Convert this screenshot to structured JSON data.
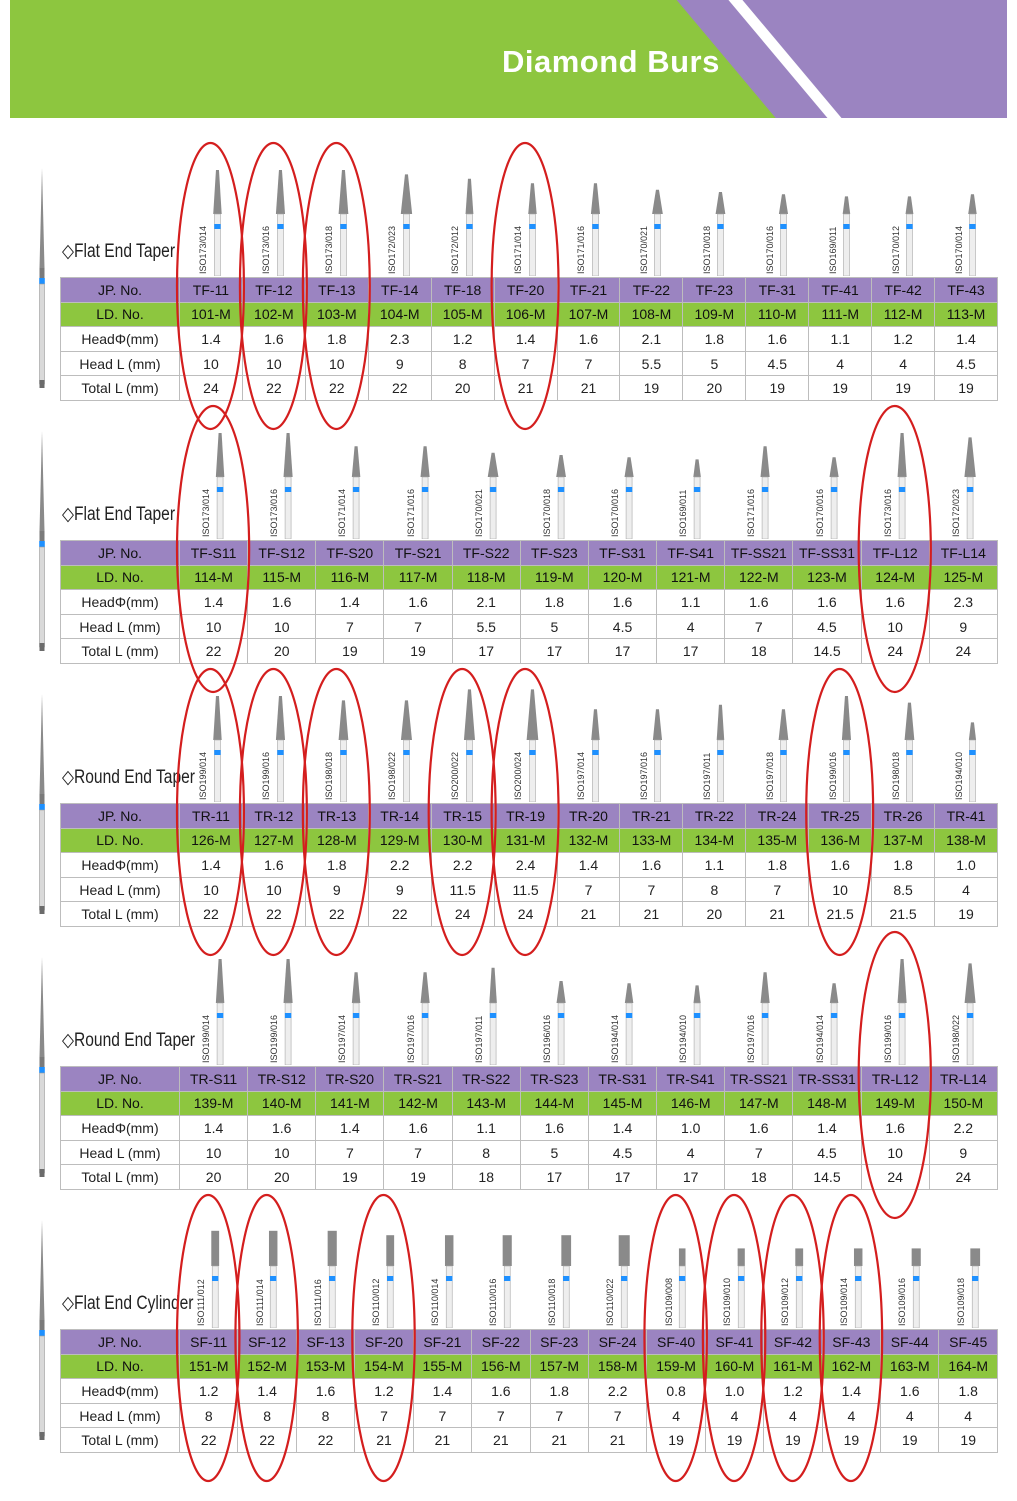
{
  "header": {
    "title": "Diamond Burs",
    "colors": {
      "green": "#8dc63f",
      "purple": "#9b84c1",
      "highlight": "#d41e1e"
    }
  },
  "row_labels": {
    "jp": "JP. No.",
    "ld": "LD. No.",
    "head_dia": "HeadΦ(mm)",
    "head_l": "Head L (mm)",
    "total_l": "Total L (mm)"
  },
  "sections": [
    {
      "title": "◇Flat End Taper",
      "iso": [
        "ISO173/014",
        "ISO173/016",
        "ISO173/018",
        "ISO172/023",
        "ISO172/012",
        "ISO171/014",
        "ISO171/016",
        "ISO170/021",
        "ISO170/018",
        "ISO170/016",
        "ISO169/011",
        "ISO170/012",
        "ISO170/014"
      ],
      "jp": [
        "TF-11",
        "TF-12",
        "TF-13",
        "TF-14",
        "TF-18",
        "TF-20",
        "TF-21",
        "TF-22",
        "TF-23",
        "TF-31",
        "TF-41",
        "TF-42",
        "TF-43"
      ],
      "ld": [
        "101-M",
        "102-M",
        "103-M",
        "104-M",
        "105-M",
        "106-M",
        "107-M",
        "108-M",
        "109-M",
        "110-M",
        "111-M",
        "112-M",
        "113-M"
      ],
      "head_dia": [
        "1.4",
        "1.6",
        "1.8",
        "2.3",
        "1.2",
        "1.4",
        "1.6",
        "2.1",
        "1.8",
        "1.6",
        "1.1",
        "1.2",
        "1.4"
      ],
      "head_l": [
        "10",
        "10",
        "10",
        "9",
        "8",
        "7",
        "7",
        "5.5",
        "5",
        "4.5",
        "4",
        "4",
        "4.5"
      ],
      "total_l": [
        "24",
        "22",
        "22",
        "22",
        "20",
        "21",
        "21",
        "19",
        "20",
        "19",
        "19",
        "19",
        "19"
      ],
      "circled": [
        0,
        1,
        2,
        5
      ],
      "head_len": [
        10,
        10,
        10,
        9,
        8,
        7,
        7,
        5.5,
        5,
        4.5,
        4,
        4,
        4.5
      ]
    },
    {
      "title": "◇Flat End Taper",
      "iso": [
        "ISO173/014",
        "ISO173/016",
        "ISO171/014",
        "ISO171/016",
        "ISO170/021",
        "ISO170/018",
        "ISO170/016",
        "ISO169/011",
        "ISO171/016",
        "ISO170/016",
        "ISO173/016",
        "ISO172/023"
      ],
      "jp": [
        "TF-S11",
        "TF-S12",
        "TF-S20",
        "TF-S21",
        "TF-S22",
        "TF-S23",
        "TF-S31",
        "TF-S41",
        "TF-SS21",
        "TF-SS31",
        "TF-L12",
        "TF-L14"
      ],
      "ld": [
        "114-M",
        "115-M",
        "116-M",
        "117-M",
        "118-M",
        "119-M",
        "120-M",
        "121-M",
        "122-M",
        "123-M",
        "124-M",
        "125-M"
      ],
      "head_dia": [
        "1.4",
        "1.6",
        "1.4",
        "1.6",
        "2.1",
        "1.8",
        "1.6",
        "1.1",
        "1.6",
        "1.6",
        "1.6",
        "2.3"
      ],
      "head_l": [
        "10",
        "10",
        "7",
        "7",
        "5.5",
        "5",
        "4.5",
        "4",
        "7",
        "4.5",
        "10",
        "9"
      ],
      "total_l": [
        "22",
        "20",
        "19",
        "19",
        "17",
        "17",
        "17",
        "17",
        "18",
        "14.5",
        "24",
        "24"
      ],
      "circled": [
        0,
        10
      ],
      "head_len": [
        10,
        10,
        7,
        7,
        5.5,
        5,
        4.5,
        4,
        7,
        4.5,
        10,
        9
      ]
    },
    {
      "title": "◇Round End Taper",
      "iso": [
        "ISO199/014",
        "ISO199/016",
        "ISO198/018",
        "ISO198/022",
        "ISO200/022",
        "ISO200/024",
        "ISO197/014",
        "ISO197/016",
        "ISO197/011",
        "ISO197/018",
        "ISO199/016",
        "ISO198/018",
        "ISO194/010"
      ],
      "jp": [
        "TR-11",
        "TR-12",
        "TR-13",
        "TR-14",
        "TR-15",
        "TR-19",
        "TR-20",
        "TR-21",
        "TR-22",
        "TR-24",
        "TR-25",
        "TR-26",
        "TR-41"
      ],
      "ld": [
        "126-M",
        "127-M",
        "128-M",
        "129-M",
        "130-M",
        "131-M",
        "132-M",
        "133-M",
        "134-M",
        "135-M",
        "136-M",
        "137-M",
        "138-M"
      ],
      "head_dia": [
        "1.4",
        "1.6",
        "1.8",
        "2.2",
        "2.2",
        "2.4",
        "1.4",
        "1.6",
        "1.1",
        "1.8",
        "1.6",
        "1.8",
        "1.0"
      ],
      "head_l": [
        "10",
        "10",
        "9",
        "9",
        "11.5",
        "11.5",
        "7",
        "7",
        "8",
        "7",
        "10",
        "8.5",
        "4"
      ],
      "total_l": [
        "22",
        "22",
        "22",
        "22",
        "24",
        "24",
        "21",
        "21",
        "20",
        "21",
        "21.5",
        "21.5",
        "19"
      ],
      "circled": [
        0,
        1,
        2,
        4,
        5,
        10
      ],
      "head_len": [
        10,
        10,
        9,
        9,
        11.5,
        11.5,
        7,
        7,
        8,
        7,
        10,
        8.5,
        4
      ]
    },
    {
      "title": "◇Round End Taper",
      "iso": [
        "ISO199/014",
        "ISO199/016",
        "ISO197/014",
        "ISO197/016",
        "ISO197/011",
        "ISO196/016",
        "ISO194/014",
        "ISO194/010",
        "ISO197/016",
        "ISO194/014",
        "ISO199/016",
        "ISO198/022"
      ],
      "jp": [
        "TR-S11",
        "TR-S12",
        "TR-S20",
        "TR-S21",
        "TR-S22",
        "TR-S23",
        "TR-S31",
        "TR-S41",
        "TR-SS21",
        "TR-SS31",
        "TR-L12",
        "TR-L14"
      ],
      "ld": [
        "139-M",
        "140-M",
        "141-M",
        "142-M",
        "143-M",
        "144-M",
        "145-M",
        "146-M",
        "147-M",
        "148-M",
        "149-M",
        "150-M"
      ],
      "head_dia": [
        "1.4",
        "1.6",
        "1.4",
        "1.6",
        "1.1",
        "1.6",
        "1.4",
        "1.0",
        "1.6",
        "1.4",
        "1.6",
        "2.2"
      ],
      "head_l": [
        "10",
        "10",
        "7",
        "7",
        "8",
        "5",
        "4.5",
        "4",
        "7",
        "4.5",
        "10",
        "9"
      ],
      "total_l": [
        "20",
        "20",
        "19",
        "19",
        "18",
        "17",
        "17",
        "17",
        "18",
        "14.5",
        "24",
        "24"
      ],
      "circled": [
        10
      ],
      "head_len": [
        10,
        10,
        7,
        7,
        8,
        5,
        4.5,
        4,
        7,
        4.5,
        10,
        9
      ]
    },
    {
      "title": "◇Flat End Cylinder",
      "iso": [
        "ISO111/012",
        "ISO111/014",
        "ISO111/016",
        "ISO110/012",
        "ISO110/014",
        "ISO110/016",
        "ISO110/018",
        "ISO110/022",
        "ISO109/008",
        "ISO109/010",
        "ISO109/012",
        "ISO109/014",
        "ISO109/016",
        "ISO109/018"
      ],
      "jp": [
        "SF-11",
        "SF-12",
        "SF-13",
        "SF-20",
        "SF-21",
        "SF-22",
        "SF-23",
        "SF-24",
        "SF-40",
        "SF-41",
        "SF-42",
        "SF-43",
        "SF-44",
        "SF-45"
      ],
      "ld": [
        "151-M",
        "152-M",
        "153-M",
        "154-M",
        "155-M",
        "156-M",
        "157-M",
        "158-M",
        "159-M",
        "160-M",
        "161-M",
        "162-M",
        "163-M",
        "164-M"
      ],
      "head_dia": [
        "1.2",
        "1.4",
        "1.6",
        "1.2",
        "1.4",
        "1.6",
        "1.8",
        "2.2",
        "0.8",
        "1.0",
        "1.2",
        "1.4",
        "1.6",
        "1.8"
      ],
      "head_l": [
        "8",
        "8",
        "8",
        "7",
        "7",
        "7",
        "7",
        "7",
        "4",
        "4",
        "4",
        "4",
        "4",
        "4"
      ],
      "total_l": [
        "22",
        "22",
        "22",
        "21",
        "21",
        "21",
        "21",
        "21",
        "19",
        "19",
        "19",
        "19",
        "19",
        "19"
      ],
      "circled": [
        0,
        1,
        3,
        8,
        9,
        10,
        11
      ],
      "head_len": [
        8,
        8,
        8,
        7,
        7,
        7,
        7,
        7,
        4,
        4,
        4,
        4,
        4,
        4
      ]
    }
  ]
}
